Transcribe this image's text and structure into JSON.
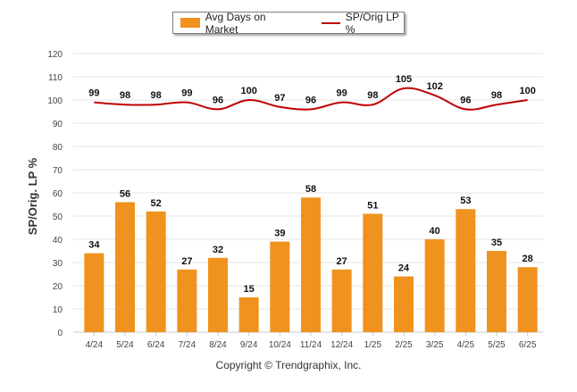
{
  "legend": {
    "bar_label": "Avg Days on Market",
    "line_label": "SP/Orig LP %"
  },
  "copyright": "Copyright © Trendgraphix, Inc.",
  "chart_data": {
    "type": "bar",
    "categories": [
      "4/24",
      "5/24",
      "6/24",
      "7/24",
      "8/24",
      "9/24",
      "10/24",
      "11/24",
      "12/24",
      "1/25",
      "2/25",
      "3/25",
      "4/25",
      "5/25",
      "6/25"
    ],
    "series": [
      {
        "name": "Avg Days on Market",
        "type": "bar",
        "color": "#f0921e",
        "values": [
          34,
          56,
          52,
          27,
          32,
          15,
          39,
          58,
          27,
          51,
          24,
          40,
          53,
          35,
          28
        ]
      },
      {
        "name": "SP/Orig LP %",
        "type": "line",
        "color": "#c00000",
        "values": [
          99,
          98,
          98,
          99,
          96,
          100,
          97,
          96,
          99,
          98,
          105,
          102,
          96,
          98,
          100
        ]
      }
    ],
    "ylabel": "SP/Orig. LP %",
    "xlabel": "",
    "ylim": [
      0,
      120
    ],
    "yticks": [
      0,
      10,
      20,
      30,
      40,
      50,
      60,
      70,
      80,
      90,
      100,
      110,
      120
    ],
    "grid": true,
    "legend_position": "top-center"
  }
}
